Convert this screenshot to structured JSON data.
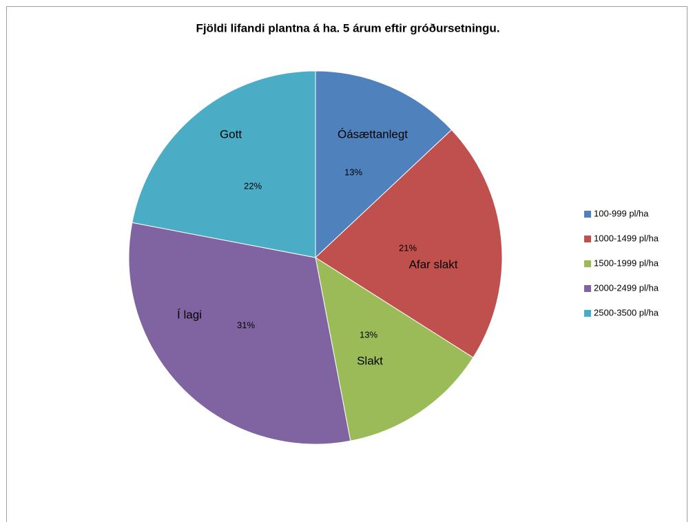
{
  "chart_data": {
    "type": "pie",
    "title": "Fjöldi lifandi plantna á ha. 5 árum eftir gróðursetningu.",
    "categories": [
      "100-999 pl/ha",
      "1000-1499 pl/ha",
      "1500-1999 pl/ha",
      "2000-2499 pl/ha",
      "2500-3500 pl/ha"
    ],
    "values": [
      13,
      21,
      13,
      31,
      22
    ],
    "value_labels": [
      "13%",
      "21%",
      "13%",
      "31%",
      "22%"
    ],
    "annotations": [
      "Óásættanlegt",
      "Afar slakt",
      "Slakt",
      "Í lagi",
      "Gott"
    ],
    "colors": [
      "#4f81bd",
      "#c0504d",
      "#9bbb59",
      "#8064a2",
      "#4bacc6"
    ],
    "legend": "right"
  }
}
